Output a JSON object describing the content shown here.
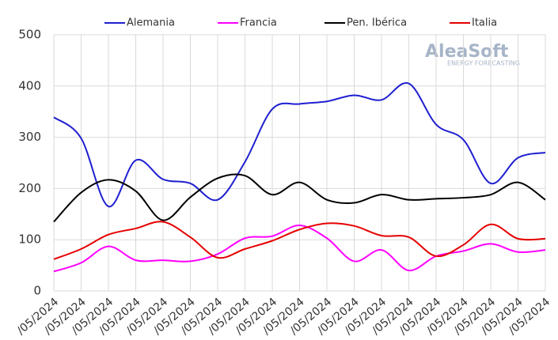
{
  "chart_data": {
    "type": "line",
    "categories": [
      "/05/2024",
      "/05/2024",
      "/05/2024",
      "/05/2024",
      "/05/2024",
      "/05/2024",
      "/05/2024",
      "/05/2024",
      "/05/2024",
      "/05/2024",
      "/05/2024",
      "/05/2024",
      "/05/2024",
      "/05/2024",
      "/05/2024",
      "/05/2024",
      "/05/2024",
      "/05/2024",
      "/05/2024"
    ],
    "series": [
      {
        "name": "Alemania",
        "color": "#1f1fd0",
        "values": [
          339,
          298,
          165,
          255,
          218,
          210,
          178,
          252,
          355,
          365,
          370,
          382,
          373,
          405,
          325,
          295,
          210,
          260,
          270
        ]
      },
      {
        "name": "Francia",
        "color": "#ff00ff",
        "values": [
          38,
          55,
          87,
          60,
          60,
          58,
          72,
          103,
          107,
          128,
          103,
          58,
          80,
          40,
          68,
          78,
          92,
          76,
          80
        ]
      },
      {
        "name": "Pen. Ibérica",
        "color": "#000000",
        "values": [
          135,
          192,
          217,
          195,
          138,
          183,
          220,
          225,
          188,
          212,
          178,
          172,
          188,
          178,
          180,
          182,
          188,
          212,
          178
        ]
      },
      {
        "name": "Italia",
        "color": "#e60000",
        "values": [
          62,
          82,
          110,
          122,
          135,
          105,
          65,
          82,
          98,
          120,
          132,
          127,
          108,
          105,
          68,
          90,
          130,
          102,
          102
        ]
      }
    ],
    "ylim": [
      0,
      500
    ],
    "yticks": [
      0,
      100,
      200,
      300,
      400,
      500
    ],
    "grid": true,
    "legend": "top",
    "watermark": {
      "name": "AleaSoft",
      "tagline": "ENERGY FORECASTING"
    }
  }
}
